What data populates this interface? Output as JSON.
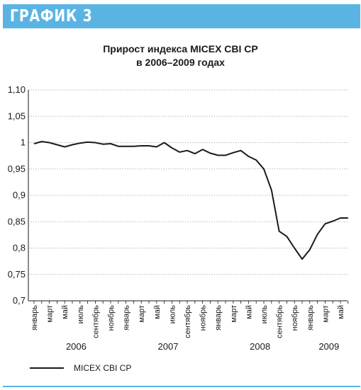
{
  "header": {
    "title": "ГРАФИК 3"
  },
  "chart_data": {
    "type": "line",
    "title_lines": [
      "Прирост индекса MICEX CBI CP",
      "в 2006–2009 годах"
    ],
    "ylim": [
      0.7,
      1.1
    ],
    "yticks": [
      "0,7",
      "0,75",
      "0,8",
      "0,85",
      "0,9",
      "0,95",
      "1",
      "1,05",
      "1,10"
    ],
    "ytick_values": [
      0.7,
      0.75,
      0.8,
      0.85,
      0.9,
      0.95,
      1.0,
      1.05,
      1.1
    ],
    "grid": "horizontal dotted",
    "x_month_labels": [
      "январь",
      "март",
      "май",
      "июль",
      "сентябрь",
      "ноябрь",
      "январь",
      "март",
      "май",
      "июль",
      "сентябрь",
      "ноябрь",
      "январь",
      "март",
      "май",
      "июль",
      "сентябрь",
      "ноябрь",
      "январь",
      "март",
      "май"
    ],
    "years": [
      "2006",
      "2007",
      "2008",
      "2009"
    ],
    "legend": {
      "position": "bottom-left",
      "label": "MICEX CBI CP"
    },
    "series": [
      {
        "name": "MICEX CBI CP",
        "color": "#1a1a1a",
        "x": [
          "2006-01",
          "2006-02",
          "2006-03",
          "2006-04",
          "2006-05",
          "2006-06",
          "2006-07",
          "2006-08",
          "2006-09",
          "2006-10",
          "2006-11",
          "2006-12",
          "2007-01",
          "2007-02",
          "2007-03",
          "2007-04",
          "2007-05",
          "2007-06",
          "2007-07",
          "2007-08",
          "2007-09",
          "2007-10",
          "2007-11",
          "2007-12",
          "2008-01",
          "2008-02",
          "2008-03",
          "2008-04",
          "2008-05",
          "2008-06",
          "2008-07",
          "2008-08",
          "2008-09",
          "2008-10",
          "2008-11",
          "2008-12",
          "2009-01",
          "2009-02",
          "2009-03",
          "2009-04",
          "2009-05",
          "2009-06"
        ],
        "y": [
          0.998,
          1.002,
          1.0,
          0.996,
          0.992,
          0.996,
          0.999,
          1.001,
          1.0,
          0.997,
          0.998,
          0.993,
          0.993,
          0.993,
          0.994,
          0.994,
          0.992,
          1.0,
          0.99,
          0.982,
          0.985,
          0.979,
          0.987,
          0.98,
          0.976,
          0.976,
          0.981,
          0.985,
          0.974,
          0.967,
          0.95,
          0.91,
          0.832,
          0.822,
          0.8,
          0.779,
          0.797,
          0.826,
          0.846,
          0.851,
          0.857,
          0.857
        ]
      }
    ]
  }
}
